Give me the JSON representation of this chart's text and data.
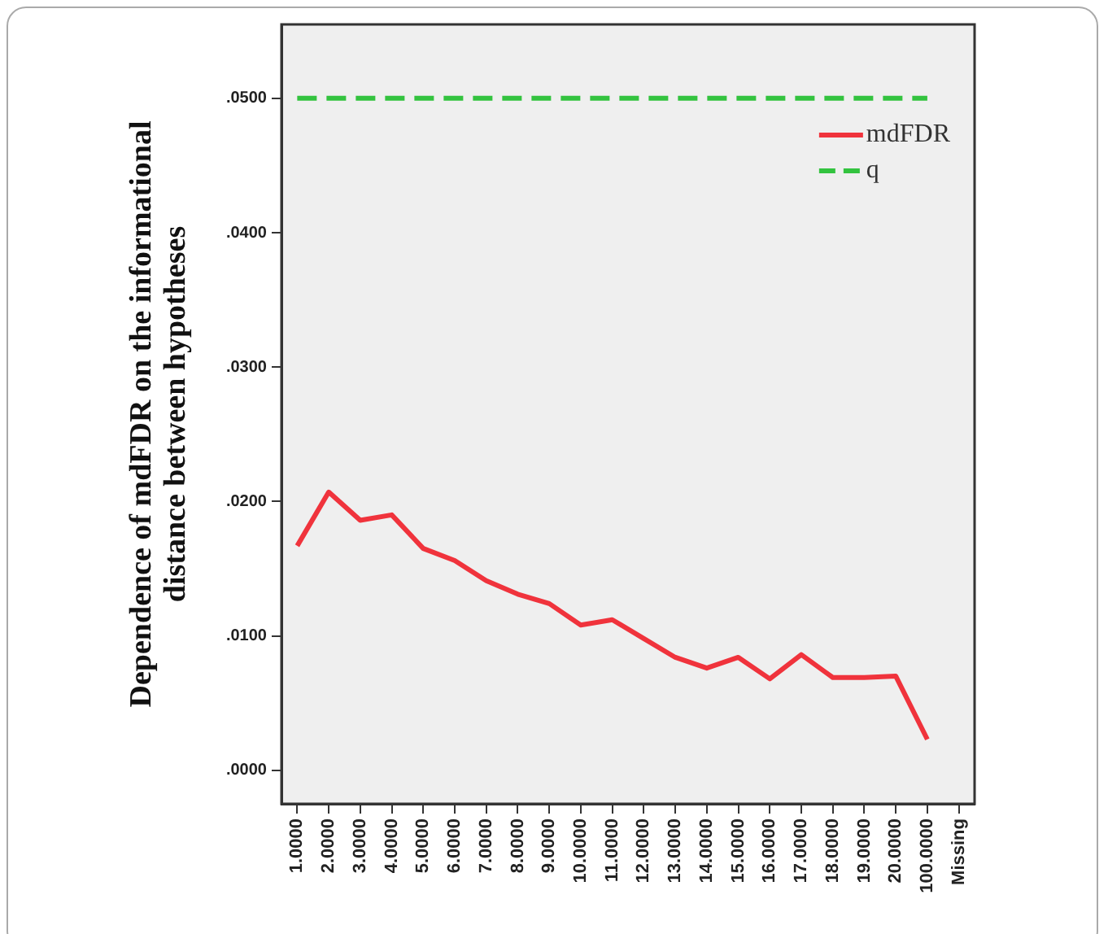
{
  "chart_data": {
    "type": "line",
    "ylabel": "Dependence of mdFDR on the informational distance between hypotheses",
    "categories": [
      "1.0000",
      "2.0000",
      "3.0000",
      "4.0000",
      "5.0000",
      "6.0000",
      "7.0000",
      "8.0000",
      "9.0000",
      "10.0000",
      "11.0000",
      "12.0000",
      "13.0000",
      "14.0000",
      "15.0000",
      "16.0000",
      "17.0000",
      "18.0000",
      "19.0000",
      "20.0000",
      "100.0000",
      "Missing"
    ],
    "series": [
      {
        "name": "mdFDR",
        "color": "#f0333c",
        "line_style": "solid",
        "values": [
          0.0167,
          0.0207,
          0.0186,
          0.019,
          0.0165,
          0.0156,
          0.0141,
          0.0131,
          0.0124,
          0.0108,
          0.0112,
          0.0098,
          0.0084,
          0.0076,
          0.0084,
          0.0068,
          0.0086,
          0.0069,
          0.0069,
          0.007,
          0.0023,
          null
        ]
      },
      {
        "name": "q",
        "color": "#33c33f",
        "line_style": "dashed",
        "values": [
          0.05,
          0.05,
          0.05,
          0.05,
          0.05,
          0.05,
          0.05,
          0.05,
          0.05,
          0.05,
          0.05,
          0.05,
          0.05,
          0.05,
          0.05,
          0.05,
          0.05,
          0.05,
          0.05,
          0.05,
          0.05,
          null
        ]
      }
    ],
    "ylim": [
      -0.0025,
      0.0555
    ],
    "yticks": [
      {
        "value": 0,
        "label": ".0000"
      },
      {
        "value": 0.01,
        "label": ".0100"
      },
      {
        "value": 0.02,
        "label": ".0200"
      },
      {
        "value": 0.03,
        "label": ".0300"
      },
      {
        "value": 0.04,
        "label": ".0400"
      },
      {
        "value": 0.05,
        "label": ".0500"
      }
    ],
    "grid": false,
    "legend": "top right",
    "marker": "none"
  }
}
